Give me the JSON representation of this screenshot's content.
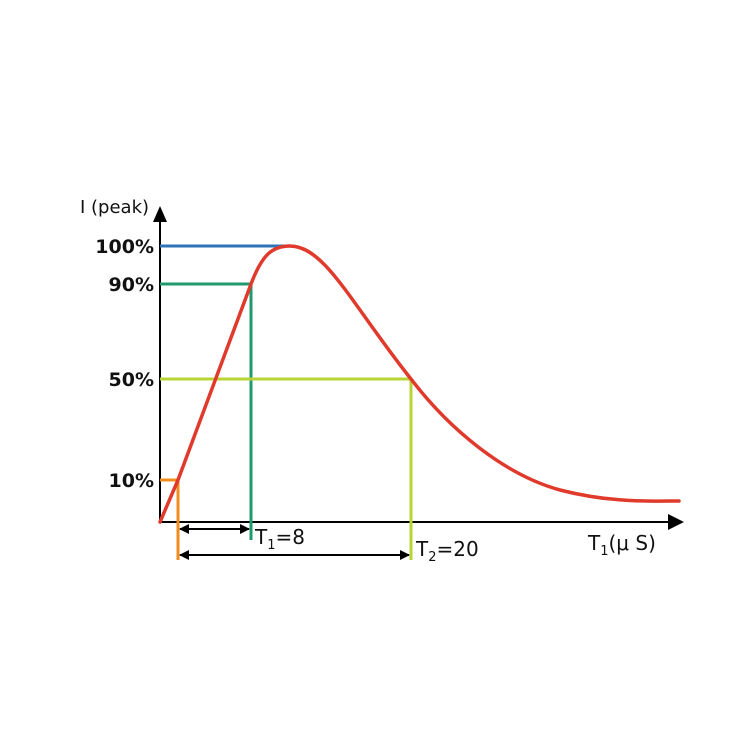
{
  "y_axis": {
    "title": "I (peak)"
  },
  "x_axis": {
    "label_main": "T",
    "label_sub": "1",
    "label_rest": "(μ S)"
  },
  "levels": [
    {
      "label": "100%",
      "value": 100,
      "color": "#2f74b8"
    },
    {
      "label": "90%",
      "value": 90,
      "color": "#1e9a6e"
    },
    {
      "label": "50%",
      "value": 50,
      "color": "#b7d336"
    },
    {
      "label": "10%",
      "value": 10,
      "color": "#f28c1c"
    }
  ],
  "times": {
    "t1": {
      "main": "T",
      "sub": "1",
      "value_text": "=8",
      "value": 8,
      "color": "#1e9a6e"
    },
    "t2": {
      "main": "T",
      "sub": "2",
      "value_text": "=20",
      "value": 20,
      "color": "#b7d336"
    }
  },
  "curve": {
    "color": "#e03a2c"
  }
}
